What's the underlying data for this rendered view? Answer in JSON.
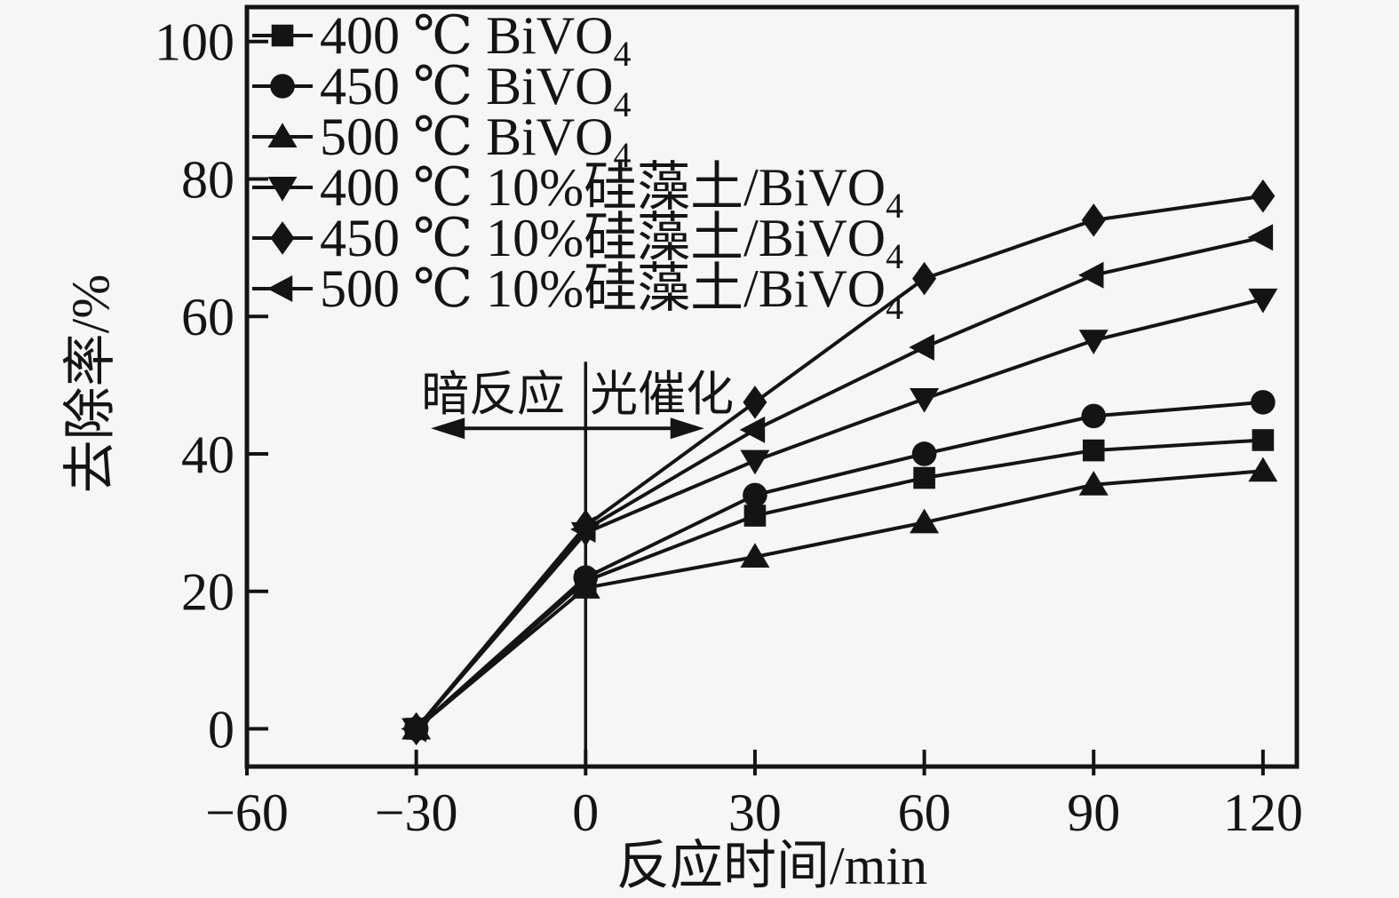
{
  "figure": {
    "background": "#f6f6f6",
    "ink": "#141414"
  },
  "chart_data": {
    "type": "line",
    "title": "",
    "xlabel": "反应时间/min",
    "ylabel": "去除率/%",
    "grid": false,
    "legend_position": "top-left",
    "xlim": [
      -60,
      126
    ],
    "ylim": [
      -5.5,
      105
    ],
    "xticks": [
      -60,
      -30,
      0,
      30,
      60,
      90,
      120
    ],
    "xtick_labels": [
      "−60",
      "−30",
      "0",
      "30",
      "60",
      "90",
      "120"
    ],
    "yticks": [
      0,
      20,
      40,
      60,
      80,
      100
    ],
    "ytick_labels": [
      "0",
      "20",
      "40",
      "60",
      "80",
      "100"
    ],
    "x": [
      -30,
      0,
      30,
      60,
      90,
      120
    ],
    "series": [
      {
        "marker": "square",
        "label_main": "400 ℃ BiVO",
        "label_sub": "4",
        "values": [
          0,
          21.5,
          31,
          36.5,
          40.5,
          42
        ]
      },
      {
        "marker": "circle",
        "label_main": "450 ℃ BiVO",
        "label_sub": "4",
        "values": [
          0,
          22,
          34,
          40,
          45.5,
          47.5
        ]
      },
      {
        "marker": "triangle-up",
        "label_main": "500 ℃ BiVO",
        "label_sub": "4",
        "values": [
          0,
          20.5,
          25,
          30,
          35.5,
          37.5
        ]
      },
      {
        "marker": "triangle-down",
        "label_main": "400 ℃ 10%硅藻土/BiVO",
        "label_sub": "4",
        "values": [
          0,
          28.5,
          39,
          48,
          56.5,
          62.5
        ]
      },
      {
        "marker": "diamond",
        "label_main": "450 ℃ 10%硅藻土/BiVO",
        "label_sub": "4",
        "values": [
          0,
          29.5,
          47.5,
          65.5,
          74,
          77.5
        ]
      },
      {
        "marker": "triangle-left",
        "label_main": "500 ℃ 10%硅藻土/BiVO",
        "label_sub": "4",
        "values": [
          0,
          29,
          43.5,
          55.5,
          66,
          71.5
        ]
      }
    ],
    "annotations": {
      "dark_label": "暗反应",
      "light_label": "光催化",
      "divider_x": 0,
      "divider_top_value": 53.4,
      "arrow_y_value": 43.7,
      "arrow_x_start": -27.4,
      "arrow_x_end": 21.0,
      "dark_label_x": -16.4,
      "light_label_x": 13.5,
      "labels_baseline_value": 46.3
    }
  }
}
